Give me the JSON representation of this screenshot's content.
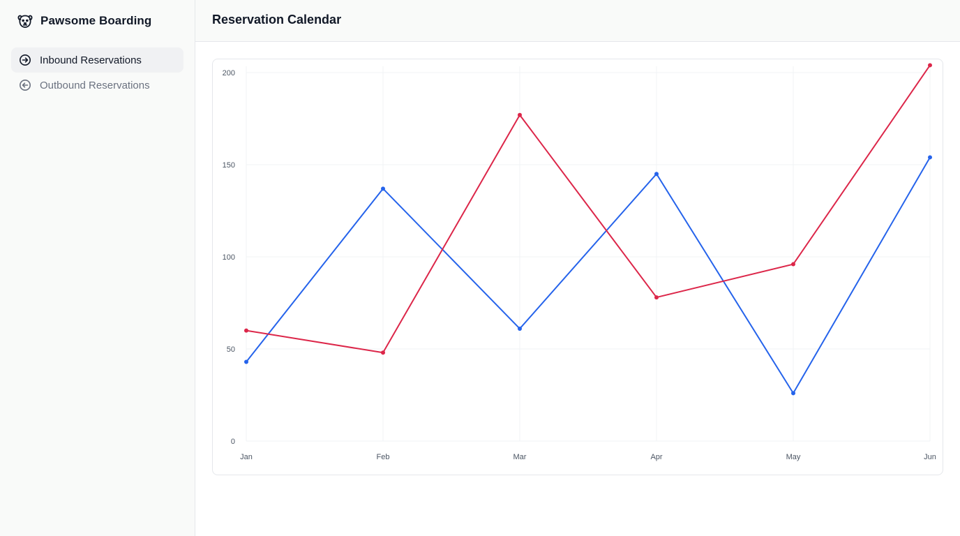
{
  "brand": {
    "name": "Pawsome Boarding",
    "icon": "dog-face-icon"
  },
  "nav": {
    "items": [
      {
        "label": "Inbound Reservations",
        "icon": "arrow-right-circle-icon",
        "active": true
      },
      {
        "label": "Outbound Reservations",
        "icon": "arrow-left-circle-icon",
        "active": false
      }
    ]
  },
  "header": {
    "title": "Reservation Calendar"
  },
  "colors": {
    "series_blue": "#2563eb",
    "series_red": "#dc2649",
    "grid": "#f1f3f5",
    "axis_text": "#4b5563"
  },
  "chart_data": {
    "type": "line",
    "title": "",
    "xlabel": "",
    "ylabel": "",
    "categories": [
      "Jan",
      "Feb",
      "Mar",
      "Apr",
      "May",
      "Jun"
    ],
    "ylim": [
      0,
      200
    ],
    "yticks": [
      0,
      50,
      100,
      150,
      200
    ],
    "grid": true,
    "legend": "none",
    "series": [
      {
        "color": "#2563eb",
        "values": [
          43,
          137,
          61,
          145,
          26,
          154
        ]
      },
      {
        "color": "#dc2649",
        "values": [
          60,
          48,
          177,
          78,
          96,
          204
        ]
      }
    ]
  }
}
